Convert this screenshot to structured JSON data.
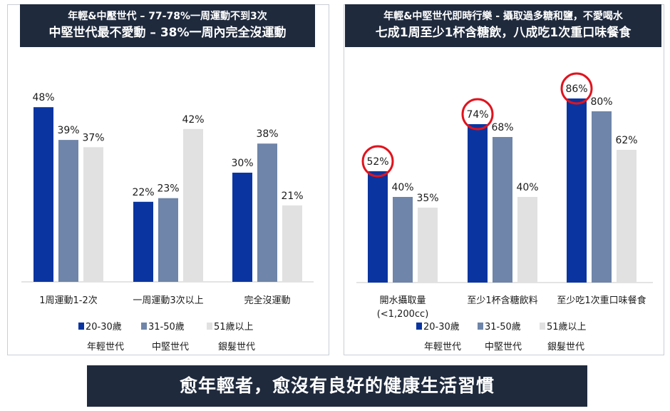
{
  "left_header": {
    "line1": "年輕&中壓世代 – 77-78%一周運動不到3次",
    "line2": "中堅世代最不愛動 – 38%一周內完全沒運動"
  },
  "right_header": {
    "line1": "年輕&中堅世代即時行樂 - 攝取過多糖和鹽，不愛喝水",
    "line2": "七成1周至少1杯含糖飲，八成吃1次重口味餐食"
  },
  "footer": {
    "text": "愈年輕者，愈沒有良好的健康生活習慣"
  },
  "colors": {
    "series1": "#0a35a0",
    "series2": "#6f85a9",
    "series3": "#e1e1e1",
    "highlight_circle": "#e0141e",
    "header_bg": "#1f2a3d"
  },
  "chart_data": [
    {
      "type": "bar",
      "categories": [
        "1周運動1-2次",
        "一周運動3次以上",
        "完全沒運動"
      ],
      "series": [
        {
          "name": "20-30歲",
          "sub": "年輕世代",
          "values": [
            48,
            22,
            30
          ]
        },
        {
          "name": "31-50歲",
          "sub": "中堅世代",
          "values": [
            39,
            23,
            38
          ]
        },
        {
          "name": "51歲以上",
          "sub": "銀髮世代",
          "values": [
            37,
            42,
            21
          ]
        }
      ],
      "value_suffix": "%",
      "ylim": [
        0,
        50
      ],
      "grid": false,
      "legend_position": "bottom",
      "circled": []
    },
    {
      "type": "bar",
      "categories": [
        [
          "開水攝取量",
          "(<1,200cc)"
        ],
        [
          "至少1杯含糖飲料"
        ],
        [
          "至少吃1次重口味餐食"
        ]
      ],
      "series": [
        {
          "name": "20-30歲",
          "sub": "年輕世代",
          "values": [
            52,
            74,
            86
          ]
        },
        {
          "name": "31-50歲",
          "sub": "中堅世代",
          "values": [
            40,
            68,
            80
          ]
        },
        {
          "name": "51歲以上",
          "sub": "銀髮世代",
          "values": [
            35,
            40,
            62
          ]
        }
      ],
      "value_suffix": "%",
      "ylim": [
        0,
        92
      ],
      "grid": false,
      "legend_position": "bottom",
      "circled": [
        [
          0,
          0
        ],
        [
          0,
          1
        ],
        [
          0,
          2
        ]
      ]
    }
  ]
}
